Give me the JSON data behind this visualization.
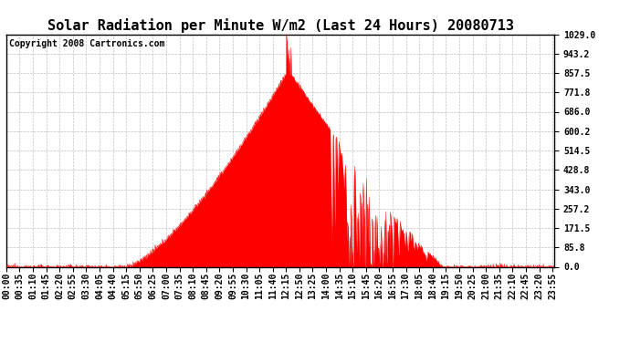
{
  "title": "Solar Radiation per Minute W/m2 (Last 24 Hours) 20080713",
  "copyright": "Copyright 2008 Cartronics.com",
  "background_color": "#ffffff",
  "plot_bg_color": "#ffffff",
  "grid_color": "#b0b0b0",
  "fill_color": "#ff0000",
  "dashed_line_color": "#ff0000",
  "y_tick_labels": [
    "0.0",
    "85.8",
    "171.5",
    "257.2",
    "343.0",
    "428.8",
    "514.5",
    "600.2",
    "686.0",
    "771.8",
    "857.5",
    "943.2",
    "1029.0"
  ],
  "y_tick_values": [
    0.0,
    85.8,
    171.5,
    257.2,
    343.0,
    428.8,
    514.5,
    600.2,
    686.0,
    771.8,
    857.5,
    943.2,
    1029.0
  ],
  "ymax": 1029.0,
  "ymin": 0.0,
  "x_tick_labels": [
    "00:00",
    "00:35",
    "01:10",
    "01:45",
    "02:20",
    "02:55",
    "03:30",
    "04:05",
    "04:40",
    "05:15",
    "05:50",
    "06:25",
    "07:00",
    "07:35",
    "08:10",
    "08:45",
    "09:20",
    "09:55",
    "10:30",
    "11:05",
    "11:40",
    "12:15",
    "12:50",
    "13:25",
    "14:00",
    "14:35",
    "15:10",
    "15:45",
    "16:20",
    "16:55",
    "17:30",
    "18:05",
    "18:40",
    "19:15",
    "19:50",
    "20:25",
    "21:00",
    "21:35",
    "22:10",
    "22:45",
    "23:20",
    "23:55"
  ],
  "title_fontsize": 11,
  "copyright_fontsize": 7,
  "tick_fontsize": 7
}
